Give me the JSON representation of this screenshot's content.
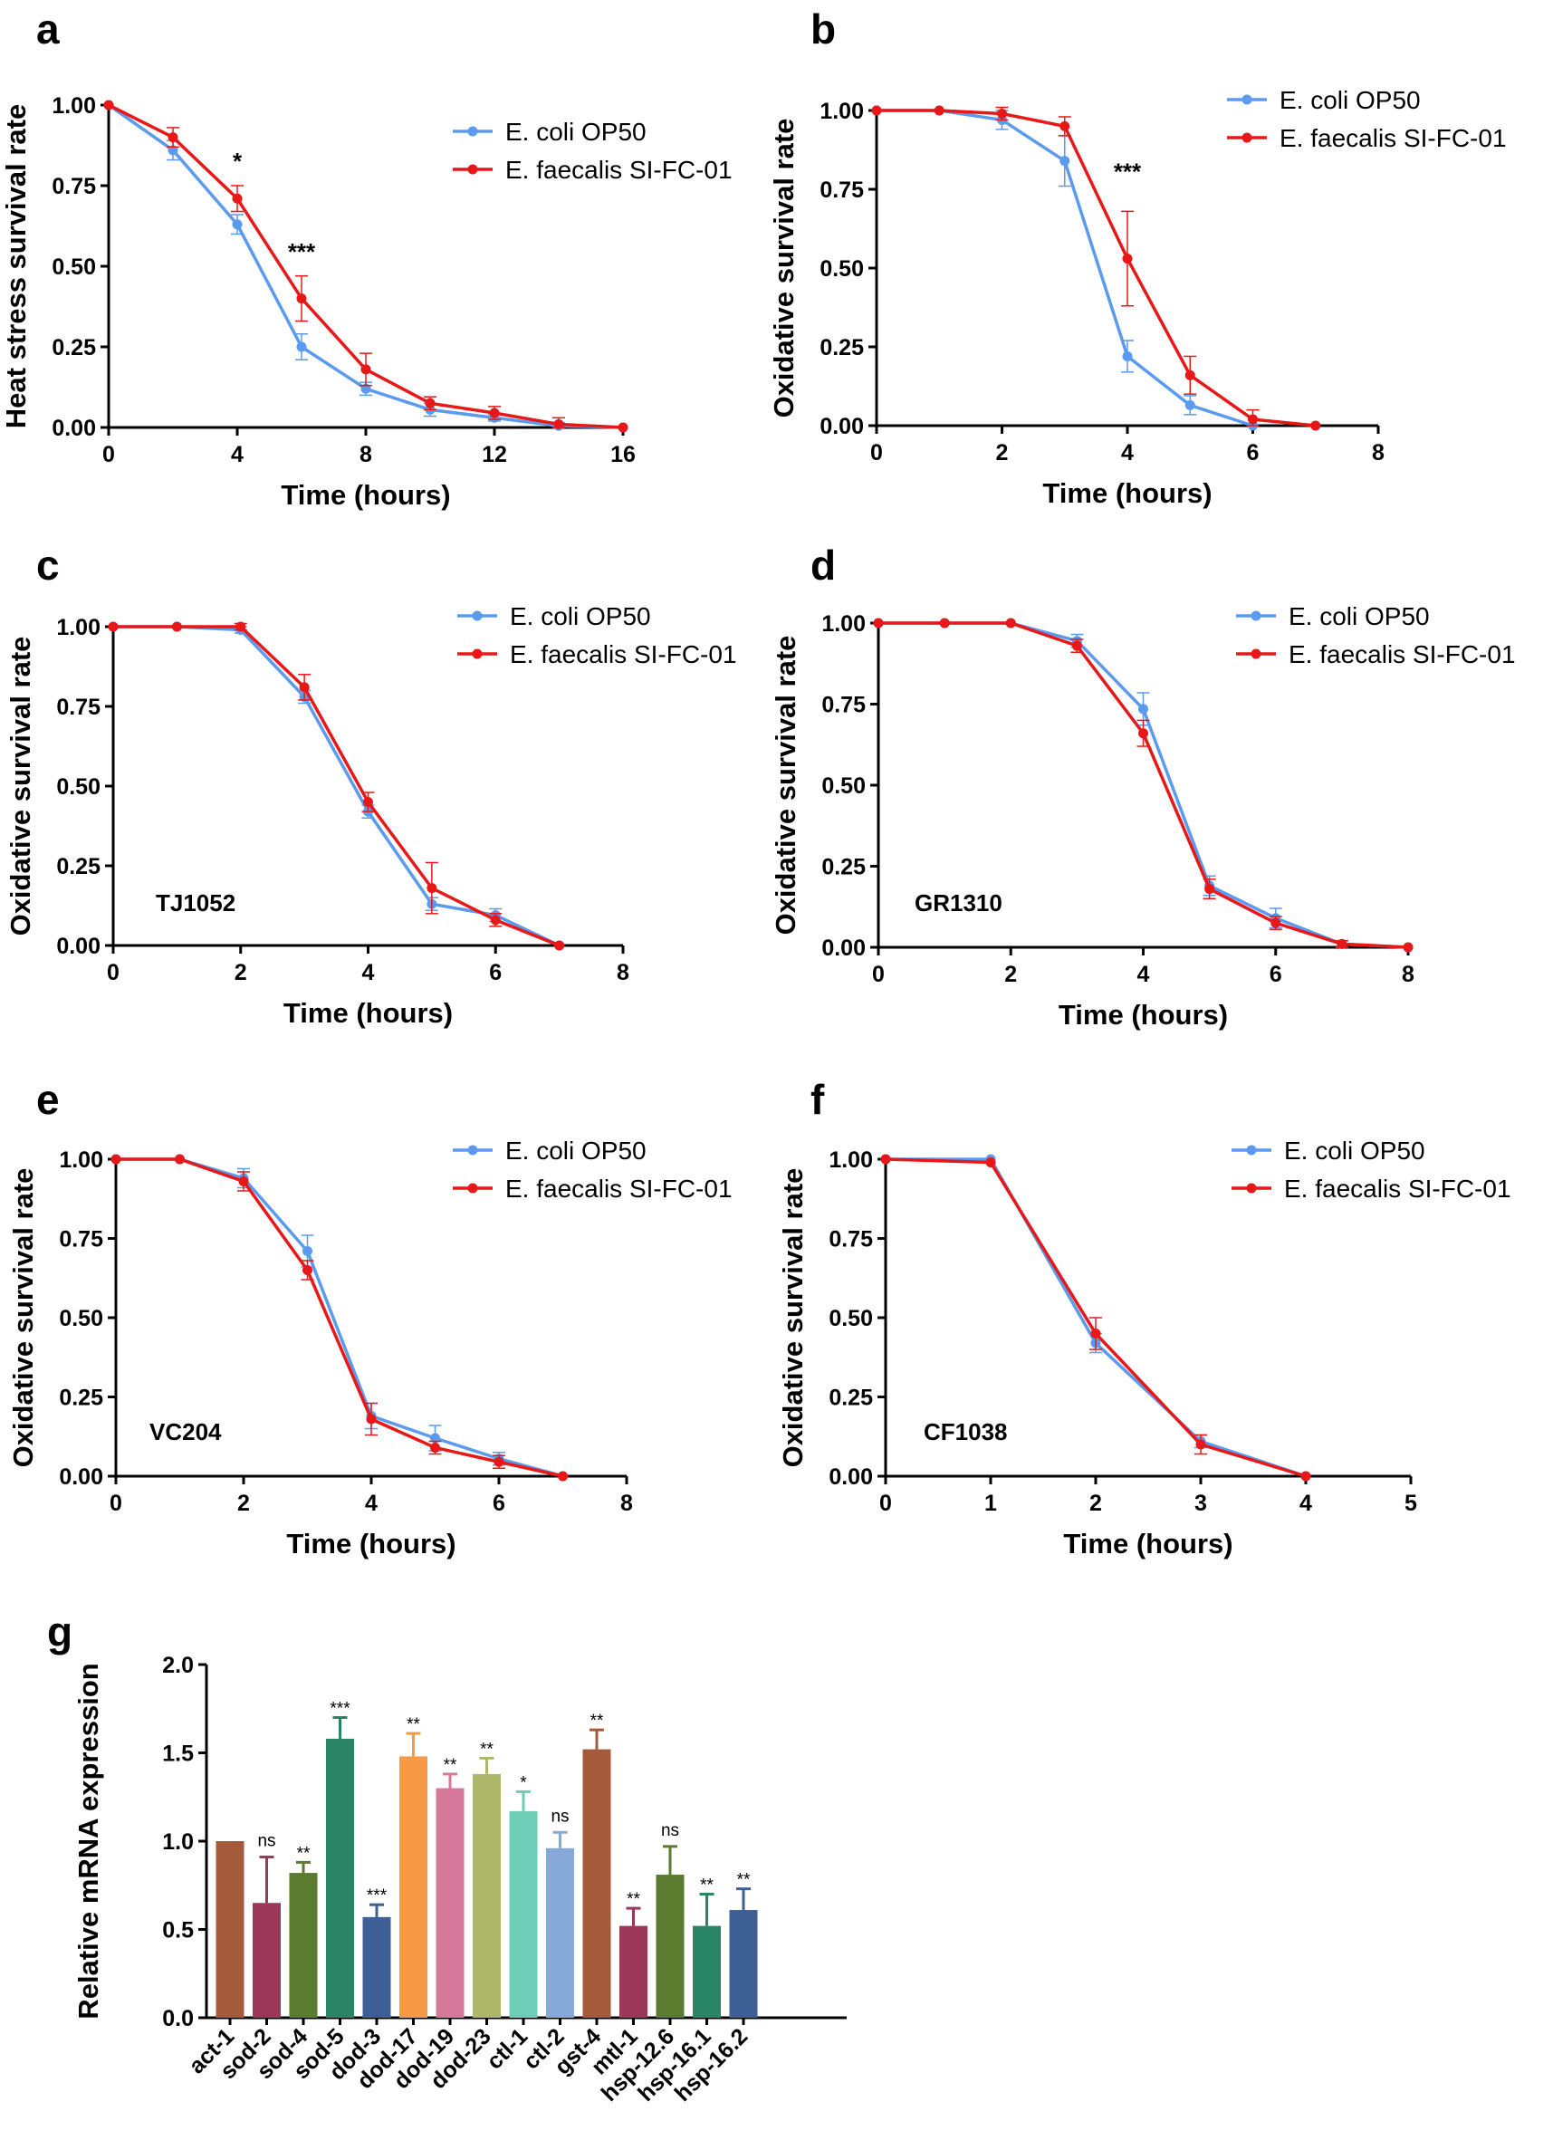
{
  "colors": {
    "ecoli": "#5b9bef",
    "faecalis": "#e81818"
  },
  "legend": {
    "ecoli": "E. coli OP50",
    "faecalis": "E. faecalis SI-FC-01"
  },
  "chart_data": [
    {
      "panel": "a",
      "type": "line",
      "xlabel": "Time (hours)",
      "ylabel": "Heat stress survival rate",
      "xlim": [
        0,
        16
      ],
      "ylim": [
        0,
        1
      ],
      "xticks": [
        "0",
        "4",
        "8",
        "12",
        "16"
      ],
      "yticks": [
        "0.00",
        "0.25",
        "0.50",
        "0.75",
        "1.00"
      ],
      "strain": "",
      "series": [
        {
          "name": "E. coli OP50",
          "x": [
            0,
            2,
            4,
            6,
            8,
            10,
            12,
            14,
            16
          ],
          "y": [
            1.0,
            0.86,
            0.63,
            0.25,
            0.12,
            0.055,
            0.03,
            0.005,
            0.0
          ],
          "err": [
            0,
            0.03,
            0.03,
            0.04,
            0.02,
            0.02,
            0.01,
            0.01,
            0
          ]
        },
        {
          "name": "E. faecalis SI-FC-01",
          "x": [
            0,
            2,
            4,
            6,
            8,
            10,
            12,
            14,
            16
          ],
          "y": [
            1.0,
            0.9,
            0.71,
            0.4,
            0.18,
            0.075,
            0.045,
            0.01,
            0.0
          ],
          "err": [
            0,
            0.03,
            0.04,
            0.07,
            0.05,
            0.02,
            0.02,
            0.02,
            0
          ]
        }
      ],
      "annotations": [
        {
          "x": 4,
          "y": 0.8,
          "text": "*"
        },
        {
          "x": 6,
          "y": 0.52,
          "text": "***"
        }
      ]
    },
    {
      "panel": "b",
      "type": "line",
      "xlabel": "Time (hours)",
      "ylabel": "Oxidative survival rate",
      "xlim": [
        0,
        8
      ],
      "ylim": [
        0,
        1
      ],
      "xticks": [
        "0",
        "2",
        "4",
        "6",
        "8"
      ],
      "yticks": [
        "0.00",
        "0.25",
        "0.50",
        "0.75",
        "1.00"
      ],
      "strain": "",
      "series": [
        {
          "name": "E. coli OP50",
          "x": [
            0,
            1,
            2,
            3,
            4,
            5,
            6
          ],
          "y": [
            1.0,
            1.0,
            0.97,
            0.84,
            0.22,
            0.065,
            0.0
          ],
          "err": [
            0,
            0,
            0.03,
            0.08,
            0.05,
            0.03,
            0
          ]
        },
        {
          "name": "E. faecalis SI-FC-01",
          "x": [
            0,
            1,
            2,
            3,
            4,
            5,
            6,
            7
          ],
          "y": [
            1.0,
            1.0,
            0.99,
            0.95,
            0.53,
            0.16,
            0.02,
            0.0
          ],
          "err": [
            0,
            0,
            0.02,
            0.03,
            0.15,
            0.06,
            0.03,
            0
          ]
        }
      ],
      "annotations": [
        {
          "x": 4,
          "y": 0.78,
          "text": "***"
        }
      ]
    },
    {
      "panel": "c",
      "type": "line",
      "xlabel": "Time (hours)",
      "ylabel": "Oxidative survival rate",
      "xlim": [
        0,
        8
      ],
      "ylim": [
        0,
        1
      ],
      "xticks": [
        "0",
        "2",
        "4",
        "6",
        "8"
      ],
      "yticks": [
        "0.00",
        "0.25",
        "0.50",
        "0.75",
        "1.00"
      ],
      "strain": "TJ1052",
      "series": [
        {
          "name": "E. coli OP50",
          "x": [
            0,
            1,
            2,
            3,
            4,
            5,
            6,
            7
          ],
          "y": [
            1.0,
            1.0,
            0.99,
            0.78,
            0.42,
            0.13,
            0.095,
            0.0
          ],
          "err": [
            0,
            0,
            0.01,
            0.02,
            0.02,
            0.02,
            0.02,
            0
          ]
        },
        {
          "name": "E. faecalis SI-FC-01",
          "x": [
            0,
            1,
            2,
            3,
            4,
            5,
            6,
            7
          ],
          "y": [
            1.0,
            1.0,
            1.0,
            0.81,
            0.45,
            0.18,
            0.08,
            0.0
          ],
          "err": [
            0,
            0,
            0.01,
            0.04,
            0.03,
            0.08,
            0.02,
            0
          ]
        }
      ],
      "annotations": []
    },
    {
      "panel": "d",
      "type": "line",
      "xlabel": "Time (hours)",
      "ylabel": "Oxidative survival rate",
      "xlim": [
        0,
        8
      ],
      "ylim": [
        0,
        1
      ],
      "xticks": [
        "0",
        "2",
        "4",
        "6",
        "8"
      ],
      "yticks": [
        "0.00",
        "0.25",
        "0.50",
        "0.75",
        "1.00"
      ],
      "strain": "GR1310",
      "series": [
        {
          "name": "E. coli OP50",
          "x": [
            0,
            1,
            2,
            3,
            4,
            5,
            6,
            7,
            8
          ],
          "y": [
            1.0,
            1.0,
            1.0,
            0.945,
            0.735,
            0.19,
            0.09,
            0.01,
            0.0
          ],
          "err": [
            0,
            0,
            0,
            0.02,
            0.05,
            0.03,
            0.03,
            0.01,
            0
          ]
        },
        {
          "name": "E. faecalis SI-FC-01",
          "x": [
            0,
            1,
            2,
            3,
            4,
            5,
            6,
            7,
            8
          ],
          "y": [
            1.0,
            1.0,
            1.0,
            0.93,
            0.66,
            0.18,
            0.075,
            0.01,
            0.0
          ],
          "err": [
            0,
            0,
            0,
            0.02,
            0.04,
            0.03,
            0.02,
            0.01,
            0
          ]
        }
      ],
      "annotations": []
    },
    {
      "panel": "e",
      "type": "line",
      "xlabel": "Time (hours)",
      "ylabel": "Oxidative survival rate",
      "xlim": [
        0,
        8
      ],
      "ylim": [
        0,
        1
      ],
      "xticks": [
        "0",
        "2",
        "4",
        "6",
        "8"
      ],
      "yticks": [
        "0.00",
        "0.25",
        "0.50",
        "0.75",
        "1.00"
      ],
      "strain": "VC204",
      "series": [
        {
          "name": "E. coli OP50",
          "x": [
            0,
            1,
            2,
            3,
            4,
            5,
            6,
            7
          ],
          "y": [
            1.0,
            1.0,
            0.94,
            0.71,
            0.19,
            0.12,
            0.055,
            0.0
          ],
          "err": [
            0,
            0,
            0.03,
            0.05,
            0.04,
            0.04,
            0.02,
            0
          ]
        },
        {
          "name": "E. faecalis SI-FC-01",
          "x": [
            0,
            1,
            2,
            3,
            4,
            5,
            6,
            7
          ],
          "y": [
            1.0,
            1.0,
            0.93,
            0.65,
            0.18,
            0.09,
            0.045,
            0.0
          ],
          "err": [
            0,
            0,
            0.03,
            0.03,
            0.05,
            0.02,
            0.02,
            0
          ]
        }
      ],
      "annotations": []
    },
    {
      "panel": "f",
      "type": "line",
      "xlabel": "Time (hours)",
      "ylabel": "Oxidative survival rate",
      "xlim": [
        0,
        5
      ],
      "ylim": [
        0,
        1
      ],
      "xticks": [
        "0",
        "1",
        "2",
        "3",
        "4",
        "5"
      ],
      "yticks": [
        "0.00",
        "0.25",
        "0.50",
        "0.75",
        "1.00"
      ],
      "strain": "CF1038",
      "series": [
        {
          "name": "E. coli OP50",
          "x": [
            0,
            1,
            2,
            3,
            4
          ],
          "y": [
            1.0,
            1.0,
            0.42,
            0.11,
            0.0
          ],
          "err": [
            0,
            0,
            0.03,
            0.02,
            0
          ]
        },
        {
          "name": "E. faecalis SI-FC-01",
          "x": [
            0,
            1,
            2,
            3,
            4
          ],
          "y": [
            1.0,
            0.99,
            0.45,
            0.1,
            0.0
          ],
          "err": [
            0,
            0,
            0.05,
            0.03,
            0
          ]
        }
      ],
      "annotations": []
    },
    {
      "panel": "g",
      "type": "bar",
      "xlabel": "",
      "ylabel": "Relative mRNA expression",
      "ylim": [
        0,
        2
      ],
      "yticks": [
        "0.0",
        "0.5",
        "1.0",
        "1.5",
        "2.0"
      ],
      "categories": [
        "act-1",
        "sod-2",
        "sod-4",
        "sod-5",
        "dod-3",
        "dod-17",
        "dod-19",
        "dod-23",
        "ctl-1",
        "ctl-2",
        "gst-4",
        "mtl-1",
        "hsp-12.6",
        "hsp-16.1",
        "hsp-16.2"
      ],
      "values": [
        1.0,
        0.65,
        0.82,
        1.58,
        0.57,
        1.48,
        1.3,
        1.38,
        1.17,
        0.96,
        1.52,
        0.52,
        0.81,
        0.52,
        0.61
      ],
      "errors": [
        0,
        0.26,
        0.06,
        0.12,
        0.07,
        0.13,
        0.08,
        0.09,
        0.11,
        0.09,
        0.11,
        0.1,
        0.16,
        0.18,
        0.12
      ],
      "significance": [
        "",
        "ns",
        "**",
        "***",
        "***",
        "**",
        "**",
        "**",
        "*",
        "ns",
        "**",
        "**",
        "ns",
        "**",
        "**"
      ],
      "bar_colors": [
        "#a55a3c",
        "#9c3759",
        "#5b7b2f",
        "#2a8566",
        "#3d5f96",
        "#f69a45",
        "#d6789a",
        "#adb86a",
        "#6dcdb6",
        "#87a9da",
        "#a55a3c",
        "#9c3759",
        "#5b7b2f",
        "#2a8566",
        "#3d5f96"
      ]
    }
  ]
}
